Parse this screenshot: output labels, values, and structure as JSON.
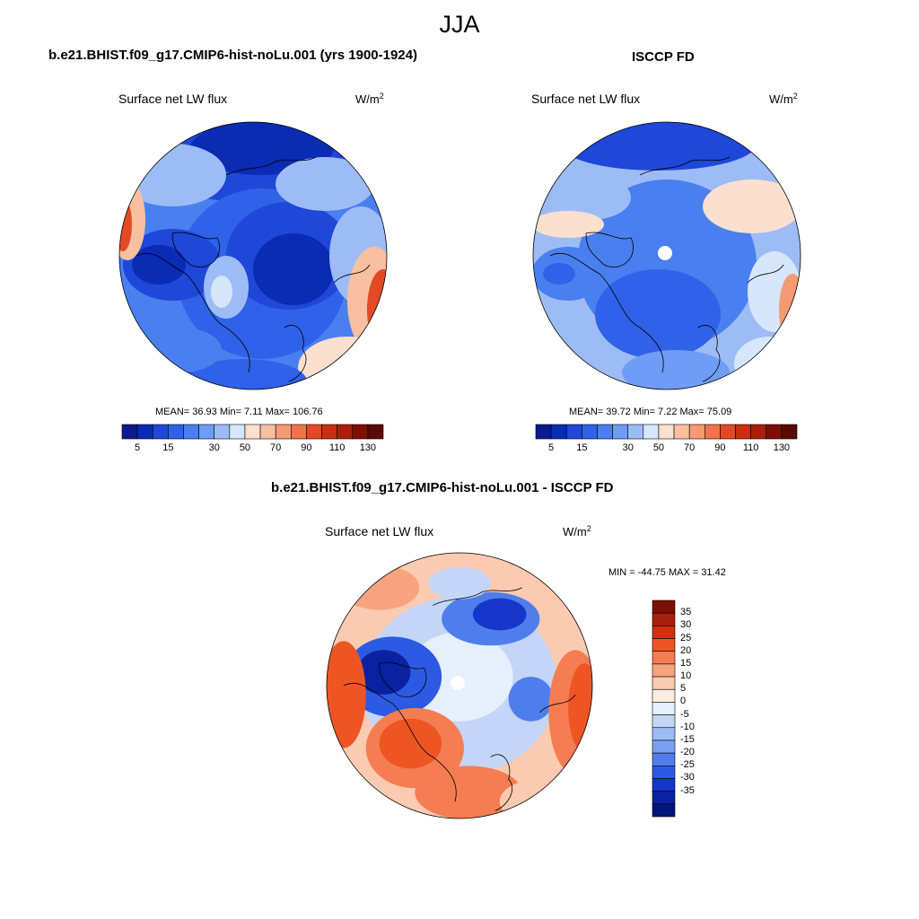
{
  "figure": {
    "title": "JJA"
  },
  "panels": [
    {
      "id": "model",
      "title": "b.e21.BHIST.f09_g17.CMIP6-hist-noLu.001 (yrs 1900-1924)",
      "subtitle": "Surface net LW flux",
      "units": "W/m",
      "units_sup": "2",
      "stats_text": "MEAN=  36.93  Min=   7.11  Max= 106.76",
      "stats": {
        "mean": 36.93,
        "min": 7.11,
        "max": 106.76
      }
    },
    {
      "id": "obs",
      "title": "ISCCP FD",
      "subtitle": "Surface net LW flux",
      "units": "W/m",
      "units_sup": "2",
      "stats_text": "MEAN=  39.72  Min=   7.22  Max=  75.09",
      "stats": {
        "mean": 39.72,
        "min": 7.22,
        "max": 75.09
      }
    },
    {
      "id": "diff",
      "title": "b.e21.BHIST.f09_g17.CMIP6-hist-noLu.001 - ISCCP FD",
      "subtitle": "Surface net LW flux",
      "units": "W/m",
      "units_sup": "2",
      "stats_text": "MIN = -44.75 MAX =  31.42",
      "stats": {
        "min": -44.75,
        "max": 31.42
      }
    }
  ],
  "chart_data": [
    {
      "type": "heatmap",
      "projection": "north-polar-stereographic",
      "title": "b.e21.BHIST.f09_g17.CMIP6-hist-noLu.001 (yrs 1900-1924)",
      "variable": "Surface net LW flux",
      "units": "W/m2",
      "colorbar": {
        "orientation": "horizontal",
        "levels": [
          5,
          10,
          15,
          20,
          25,
          30,
          40,
          50,
          60,
          70,
          80,
          90,
          100,
          110,
          120,
          130
        ],
        "labels": [
          "5",
          "15",
          "30",
          "50",
          "70",
          "90",
          "110",
          "130"
        ],
        "colors": [
          "#0b1a8c",
          "#0a2bb3",
          "#1f47d8",
          "#2f62e8",
          "#4a7ff0",
          "#6f9cf4",
          "#9dbcf6",
          "#d6e6fb",
          "#fbe0cf",
          "#f8c0a0",
          "#f59a74",
          "#f0734b",
          "#e24a26",
          "#c92e10",
          "#a81f0a",
          "#7d0f05",
          "#5a0a03"
        ]
      },
      "stats": {
        "mean": 36.93,
        "min": 7.11,
        "max": 106.76
      }
    },
    {
      "type": "heatmap",
      "projection": "north-polar-stereographic",
      "title": "ISCCP FD",
      "variable": "Surface net LW flux",
      "units": "W/m2",
      "colorbar": {
        "orientation": "horizontal",
        "levels": [
          5,
          10,
          15,
          20,
          25,
          30,
          40,
          50,
          60,
          70,
          80,
          90,
          100,
          110,
          120,
          130
        ],
        "labels": [
          "5",
          "15",
          "30",
          "50",
          "70",
          "90",
          "110",
          "130"
        ],
        "colors": [
          "#0b1a8c",
          "#0a2bb3",
          "#1f47d8",
          "#2f62e8",
          "#4a7ff0",
          "#6f9cf4",
          "#9dbcf6",
          "#d6e6fb",
          "#fbe0cf",
          "#f8c0a0",
          "#f59a74",
          "#f0734b",
          "#e24a26",
          "#c92e10",
          "#a81f0a",
          "#7d0f05",
          "#5a0a03"
        ]
      },
      "stats": {
        "mean": 39.72,
        "min": 7.22,
        "max": 75.09
      }
    },
    {
      "type": "heatmap",
      "projection": "north-polar-stereographic",
      "title": "b.e21.BHIST.f09_g17.CMIP6-hist-noLu.001 - ISCCP FD",
      "variable": "Surface net LW flux",
      "units": "W/m2",
      "colorbar": {
        "orientation": "vertical",
        "levels": [
          35,
          30,
          25,
          20,
          15,
          10,
          5,
          0,
          -5,
          -10,
          -15,
          -20,
          -25,
          -30,
          -35
        ],
        "labels": [
          "35",
          "30",
          "25",
          "20",
          "15",
          "10",
          "5",
          "0",
          "-5",
          "-10",
          "-15",
          "-20",
          "-25",
          "-30",
          "-35"
        ],
        "colors": [
          "#7d0f05",
          "#a81f0a",
          "#d0300e",
          "#ee5524",
          "#f47d52",
          "#f7a37f",
          "#fbcab0",
          "#fdece2",
          "#e6effc",
          "#c3d6f7",
          "#9dbcf6",
          "#7aa0f2",
          "#4f7eec",
          "#2d5ae2",
          "#1437c9",
          "#0a22a0",
          "#061578"
        ]
      },
      "stats": {
        "min": -44.75,
        "max": 31.42
      }
    }
  ]
}
